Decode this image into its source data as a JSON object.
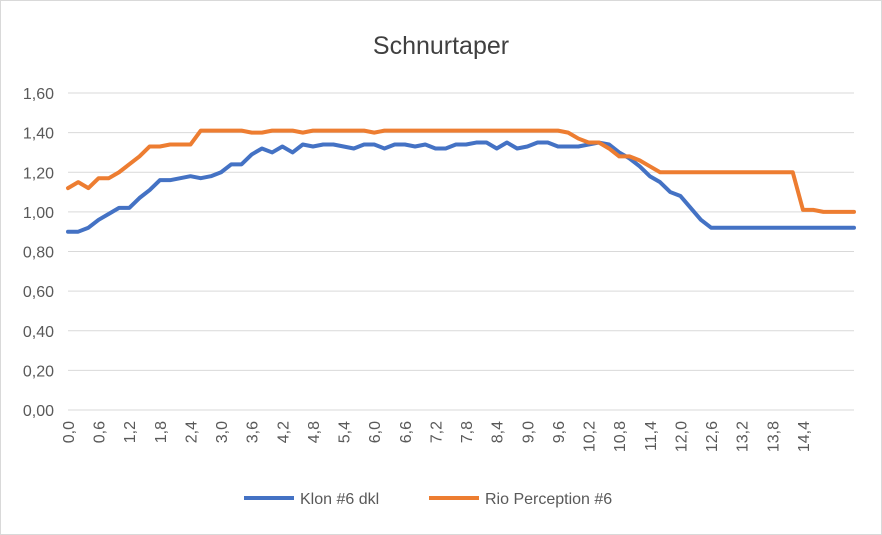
{
  "chart_data": {
    "type": "line",
    "title": "Schnurtaper",
    "xlabel": "",
    "ylabel": "",
    "ylim": [
      0,
      1.6
    ],
    "y_ticks": [
      "0,00",
      "0,20",
      "0,40",
      "0,60",
      "0,80",
      "1,00",
      "1,20",
      "1,40",
      "1,60"
    ],
    "x_ticks": [
      "0,0",
      "0,6",
      "1,2",
      "1,8",
      "2,4",
      "3,0",
      "3,6",
      "4,2",
      "4,8",
      "5,4",
      "6,0",
      "6,6",
      "7,2",
      "7,8",
      "8,4",
      "9,0",
      "9,6",
      "10,2",
      "10,8",
      "11,4",
      "12,0",
      "12,6",
      "13,2",
      "13,8",
      "14,4"
    ],
    "x_step": 0.2,
    "grid": true,
    "legend_position": "bottom",
    "series": [
      {
        "name": "Klon #6 dkl",
        "color": "#4472C4",
        "values": [
          0.9,
          0.9,
          0.92,
          0.96,
          0.99,
          1.02,
          1.02,
          1.07,
          1.11,
          1.16,
          1.16,
          1.17,
          1.18,
          1.17,
          1.18,
          1.2,
          1.24,
          1.24,
          1.29,
          1.32,
          1.3,
          1.33,
          1.3,
          1.34,
          1.33,
          1.34,
          1.34,
          1.33,
          1.32,
          1.34,
          1.34,
          1.32,
          1.34,
          1.34,
          1.33,
          1.34,
          1.32,
          1.32,
          1.34,
          1.34,
          1.35,
          1.35,
          1.32,
          1.35,
          1.32,
          1.33,
          1.35,
          1.35,
          1.33,
          1.33,
          1.33,
          1.34,
          1.35,
          1.34,
          1.3,
          1.27,
          1.23,
          1.18,
          1.15,
          1.1,
          1.08,
          1.02,
          0.96,
          0.92,
          0.92,
          0.92,
          0.92,
          0.92,
          0.92,
          0.92,
          0.92,
          0.92,
          0.92,
          0.92,
          0.92,
          0.92,
          0.92,
          0.92
        ]
      },
      {
        "name": "Rio Perception #6",
        "color": "#ED7D31",
        "values": [
          1.12,
          1.15,
          1.12,
          1.17,
          1.17,
          1.2,
          1.24,
          1.28,
          1.33,
          1.33,
          1.34,
          1.34,
          1.34,
          1.41,
          1.41,
          1.41,
          1.41,
          1.41,
          1.4,
          1.4,
          1.41,
          1.41,
          1.41,
          1.4,
          1.41,
          1.41,
          1.41,
          1.41,
          1.41,
          1.41,
          1.4,
          1.41,
          1.41,
          1.41,
          1.41,
          1.41,
          1.41,
          1.41,
          1.41,
          1.41,
          1.41,
          1.41,
          1.41,
          1.41,
          1.41,
          1.41,
          1.41,
          1.41,
          1.41,
          1.4,
          1.37,
          1.35,
          1.35,
          1.32,
          1.28,
          1.28,
          1.26,
          1.23,
          1.2,
          1.2,
          1.2,
          1.2,
          1.2,
          1.2,
          1.2,
          1.2,
          1.2,
          1.2,
          1.2,
          1.2,
          1.2,
          1.2,
          1.01,
          1.01,
          1.0,
          1.0,
          1.0,
          1.0
        ]
      }
    ]
  }
}
